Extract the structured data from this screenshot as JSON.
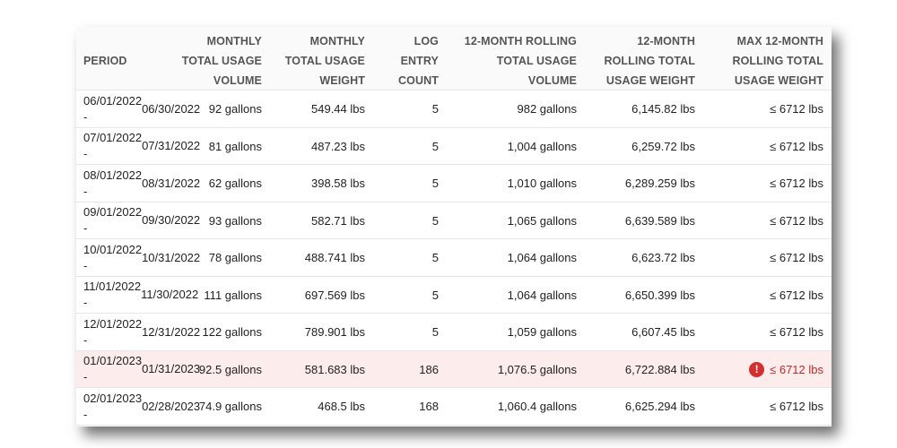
{
  "columns": [
    {
      "key": "period",
      "lines": [
        "PERIOD"
      ]
    },
    {
      "key": "monthly_volume",
      "lines": [
        "MONTHLY",
        "TOTAL USAGE",
        "VOLUME"
      ]
    },
    {
      "key": "monthly_weight",
      "lines": [
        "MONTHLY",
        "TOTAL USAGE",
        "WEIGHT"
      ]
    },
    {
      "key": "log_count",
      "lines": [
        "LOG",
        "ENTRY",
        "COUNT"
      ]
    },
    {
      "key": "rolling_volume",
      "lines": [
        "12-MONTH ROLLING",
        "TOTAL USAGE",
        "VOLUME"
      ]
    },
    {
      "key": "rolling_weight",
      "lines": [
        "12-MONTH",
        "ROLLING TOTAL",
        "USAGE WEIGHT"
      ]
    },
    {
      "key": "max_weight",
      "lines": [
        "MAX 12-MONTH",
        "ROLLING TOTAL",
        "USAGE WEIGHT"
      ]
    }
  ],
  "rows": [
    {
      "period": [
        "06/01/2022 -",
        "06/30/2022"
      ],
      "monthly_volume": "92 gallons",
      "monthly_weight": "549.44 lbs",
      "log_count": "5",
      "rolling_volume": "982 gallons",
      "rolling_weight": "6,145.82 lbs",
      "max_weight": "≤ 6712 lbs",
      "flagged": false
    },
    {
      "period": [
        "07/01/2022 -",
        "07/31/2022"
      ],
      "monthly_volume": "81 gallons",
      "monthly_weight": "487.23 lbs",
      "log_count": "5",
      "rolling_volume": "1,004 gallons",
      "rolling_weight": "6,259.72 lbs",
      "max_weight": "≤ 6712 lbs",
      "flagged": false
    },
    {
      "period": [
        "08/01/2022 -",
        "08/31/2022"
      ],
      "monthly_volume": "62 gallons",
      "monthly_weight": "398.58 lbs",
      "log_count": "5",
      "rolling_volume": "1,010 gallons",
      "rolling_weight": "6,289.259 lbs",
      "max_weight": "≤ 6712 lbs",
      "flagged": false
    },
    {
      "period": [
        "09/01/2022 -",
        "09/30/2022"
      ],
      "monthly_volume": "93 gallons",
      "monthly_weight": "582.71 lbs",
      "log_count": "5",
      "rolling_volume": "1,065 gallons",
      "rolling_weight": "6,639.589 lbs",
      "max_weight": "≤ 6712 lbs",
      "flagged": false
    },
    {
      "period": [
        "10/01/2022 -",
        "10/31/2022"
      ],
      "monthly_volume": "78 gallons",
      "monthly_weight": "488.741 lbs",
      "log_count": "5",
      "rolling_volume": "1,064 gallons",
      "rolling_weight": "6,623.72 lbs",
      "max_weight": "≤ 6712 lbs",
      "flagged": false
    },
    {
      "period": [
        "11/01/2022 -",
        "11/30/2022"
      ],
      "monthly_volume": "111 gallons",
      "monthly_weight": "697.569 lbs",
      "log_count": "5",
      "rolling_volume": "1,064 gallons",
      "rolling_weight": "6,650.399 lbs",
      "max_weight": "≤ 6712 lbs",
      "flagged": false
    },
    {
      "period": [
        "12/01/2022 -",
        "12/31/2022"
      ],
      "monthly_volume": "122 gallons",
      "monthly_weight": "789.901 lbs",
      "log_count": "5",
      "rolling_volume": "1,059 gallons",
      "rolling_weight": "6,607.45 lbs",
      "max_weight": "≤ 6712 lbs",
      "flagged": false
    },
    {
      "period": [
        "01/01/2023 -",
        "01/31/2023"
      ],
      "monthly_volume": "92.5 gallons",
      "monthly_weight": "581.683 lbs",
      "log_count": "186",
      "rolling_volume": "1,076.5 gallons",
      "rolling_weight": "6,722.884 lbs",
      "max_weight": "≤ 6712 lbs",
      "flagged": true
    },
    {
      "period": [
        "02/01/2023 -",
        "02/28/2023"
      ],
      "monthly_volume": "74.9 gallons",
      "monthly_weight": "468.5 lbs",
      "log_count": "168",
      "rolling_volume": "1,060.4 gallons",
      "rolling_weight": "6,625.294 lbs",
      "max_weight": "≤ 6712 lbs",
      "flagged": false
    }
  ],
  "icons": {
    "flag_icon": "alert-circle-icon",
    "flag_glyph": "!"
  },
  "colors": {
    "flag_background": "#fcecec",
    "flag_text": "#c62828",
    "flag_icon": "#d32f2f"
  }
}
